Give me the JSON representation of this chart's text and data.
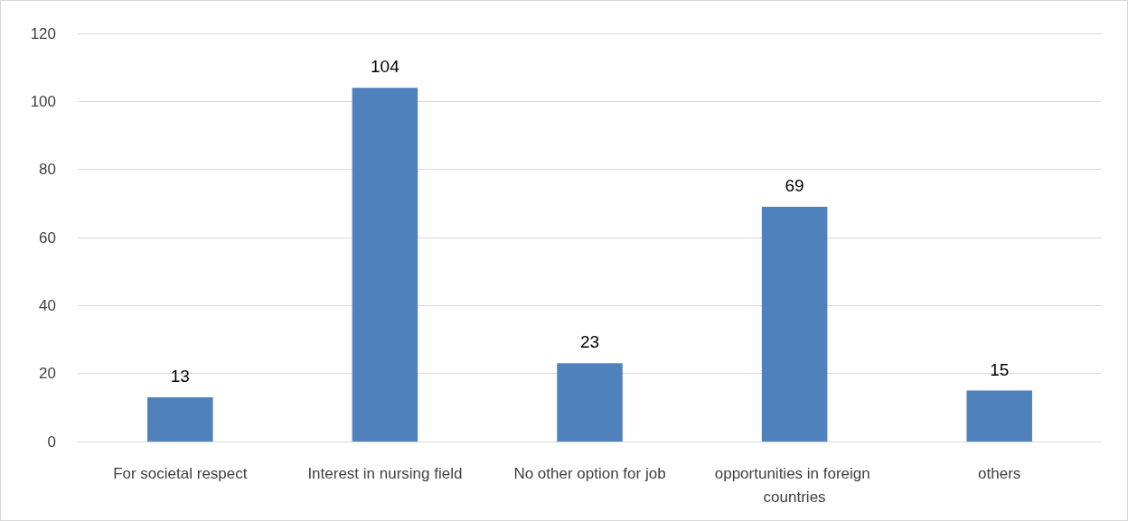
{
  "chart_data": {
    "type": "bar",
    "categories": [
      "For societal respect",
      "Interest in nursing field",
      "No other option for job",
      "opportunities in foreign countries",
      "others"
    ],
    "values": [
      13,
      104,
      23,
      69,
      15
    ],
    "color": "#4f81bd",
    "ylim": [
      0,
      120
    ],
    "yticks": [
      0,
      20,
      40,
      60,
      80,
      100,
      120
    ],
    "grid": "y",
    "data_labels": true
  }
}
